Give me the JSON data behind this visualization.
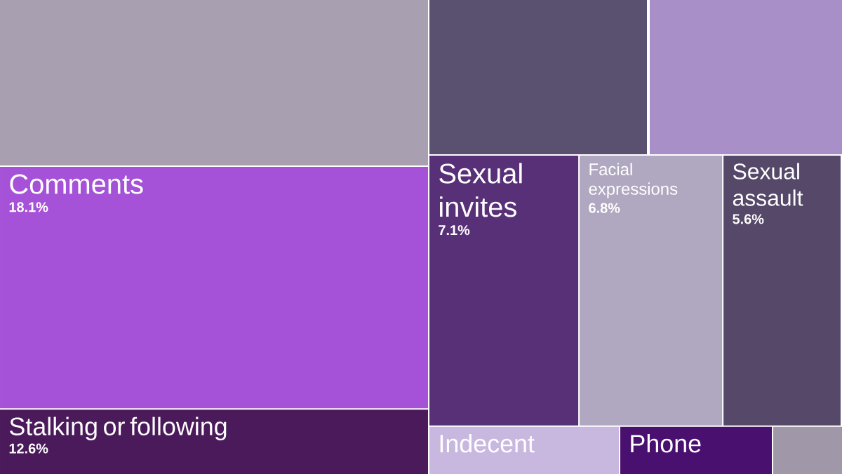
{
  "chart_data": {
    "type": "other",
    "categories": [
      null,
      null,
      null,
      "Comments",
      "Stalking or following",
      "Sexual invites",
      "Facial expressions",
      "Sexual assault",
      "Indecent",
      "Phone",
      null
    ],
    "values": [
      null,
      null,
      null,
      18.1,
      12.6,
      7.1,
      6.8,
      5.6,
      null,
      null,
      null
    ],
    "value_labels": [
      null,
      null,
      null,
      "18.1%",
      "12.6%",
      "7.1%",
      "6.8%",
      "5.6%",
      null,
      null,
      null
    ],
    "colors": [
      "#a8a0b0",
      "#5a5070",
      "#a98fc8",
      "#a652d8",
      "#4a1a5a",
      "#583078",
      "#b0a8c0",
      "#554868",
      "#c8b8e0",
      "#4a1070",
      "#a098a8"
    ]
  }
}
